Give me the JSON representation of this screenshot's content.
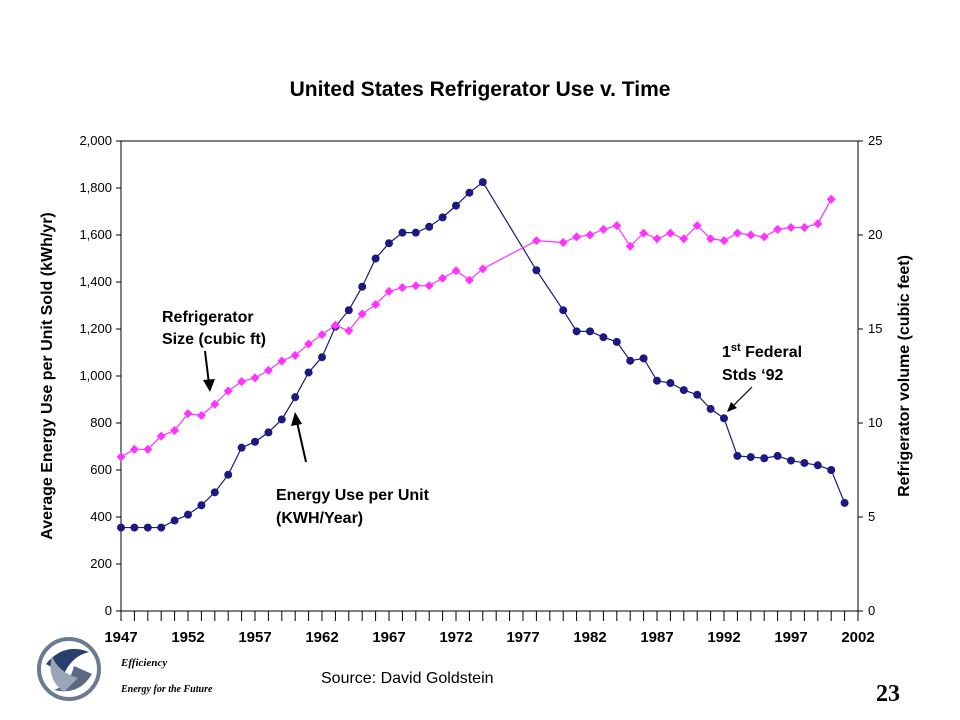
{
  "chart_data": {
    "type": "line",
    "title": "United States Refrigerator Use v. Time",
    "y_left": {
      "label": "Average Energy Use per Unit Sold (kWh/yr)",
      "range": [
        0,
        2000
      ],
      "ticks": [
        "0",
        "200",
        "400",
        "600",
        "800",
        "1,000",
        "1,200",
        "1,400",
        "1,600",
        "1,800",
        "2,000"
      ]
    },
    "y_right": {
      "label": "Refrigerator volume (cubic feet)",
      "range": [
        0,
        25
      ],
      "ticks": [
        "0",
        "5",
        "10",
        "15",
        "20",
        "25"
      ]
    },
    "x_axis": {
      "range": [
        1947,
        2002
      ],
      "ticks": [
        "1947",
        "1952",
        "1957",
        "1962",
        "1967",
        "1972",
        "1977",
        "1982",
        "1987",
        "1992",
        "1997",
        "2002"
      ]
    },
    "series": [
      {
        "name": "Energy Use per Unit (KWH/Year)",
        "axis": "left",
        "color": "#1a1a80",
        "marker": "circle",
        "x": [
          1947,
          1948,
          1949,
          1950,
          1951,
          1952,
          1953,
          1954,
          1955,
          1956,
          1957,
          1958,
          1959,
          1960,
          1961,
          1962,
          1963,
          1964,
          1965,
          1966,
          1967,
          1968,
          1969,
          1970,
          1971,
          1972,
          1973,
          1974,
          1978,
          1980,
          1981,
          1982,
          1983,
          1984,
          1985,
          1986,
          1987,
          1988,
          1989,
          1990,
          1991,
          1992,
          1993,
          1994,
          1995,
          1996,
          1997,
          1998,
          1999,
          2000,
          2001
        ],
        "y": [
          355,
          355,
          355,
          355,
          385,
          410,
          450,
          505,
          580,
          695,
          720,
          760,
          815,
          910,
          1015,
          1080,
          1210,
          1280,
          1380,
          1500,
          1565,
          1610,
          1610,
          1635,
          1675,
          1725,
          1780,
          1825,
          1450,
          1280,
          1190,
          1190,
          1165,
          1145,
          1065,
          1075,
          980,
          970,
          940,
          920,
          860,
          820,
          660,
          655,
          650,
          660,
          640,
          630,
          620,
          600,
          460
        ]
      },
      {
        "name": "Refrigerator Size (cubic ft)",
        "axis": "right",
        "color": "#ff33ff",
        "marker": "diamond",
        "x": [
          1947,
          1948,
          1949,
          1950,
          1951,
          1952,
          1953,
          1954,
          1955,
          1956,
          1957,
          1958,
          1959,
          1960,
          1961,
          1962,
          1963,
          1964,
          1965,
          1966,
          1967,
          1968,
          1969,
          1970,
          1971,
          1972,
          1973,
          1974,
          1978,
          1980,
          1981,
          1982,
          1983,
          1984,
          1985,
          1986,
          1987,
          1988,
          1989,
          1990,
          1991,
          1992,
          1993,
          1994,
          1995,
          1996,
          1997,
          1998,
          1999,
          2000,
          2001
        ],
        "y": [
          8.2,
          8.6,
          8.6,
          9.3,
          9.6,
          10.5,
          10.4,
          11.0,
          11.7,
          12.2,
          12.4,
          12.8,
          13.3,
          13.6,
          14.2,
          14.7,
          15.2,
          14.9,
          15.8,
          16.3,
          17.0,
          17.2,
          17.3,
          17.3,
          17.7,
          18.1,
          17.6,
          18.2,
          19.7,
          19.6,
          19.9,
          20.0,
          20.3,
          20.5,
          19.4,
          20.1,
          19.8,
          20.1,
          19.8,
          20.5,
          19.8,
          19.7,
          20.1,
          20.0,
          19.9,
          20.3,
          20.4,
          20.4,
          20.6,
          21.9,
          null
        ]
      }
    ],
    "annotations": [
      {
        "name": "size",
        "lines": [
          "Refrigerator",
          "Size (cubic ft)"
        ]
      },
      {
        "name": "energy",
        "lines": [
          "Energy Use per Unit",
          "(KWH/Year)"
        ]
      },
      {
        "name": "federal",
        "lines": [
          "1st Federal",
          "Stds ‘92"
        ]
      }
    ]
  },
  "footer": {
    "source": "Source: David Goldstein",
    "page_number": "23",
    "logo_title": "Efficiency",
    "logo_subtitle": "Energy for the Future"
  }
}
